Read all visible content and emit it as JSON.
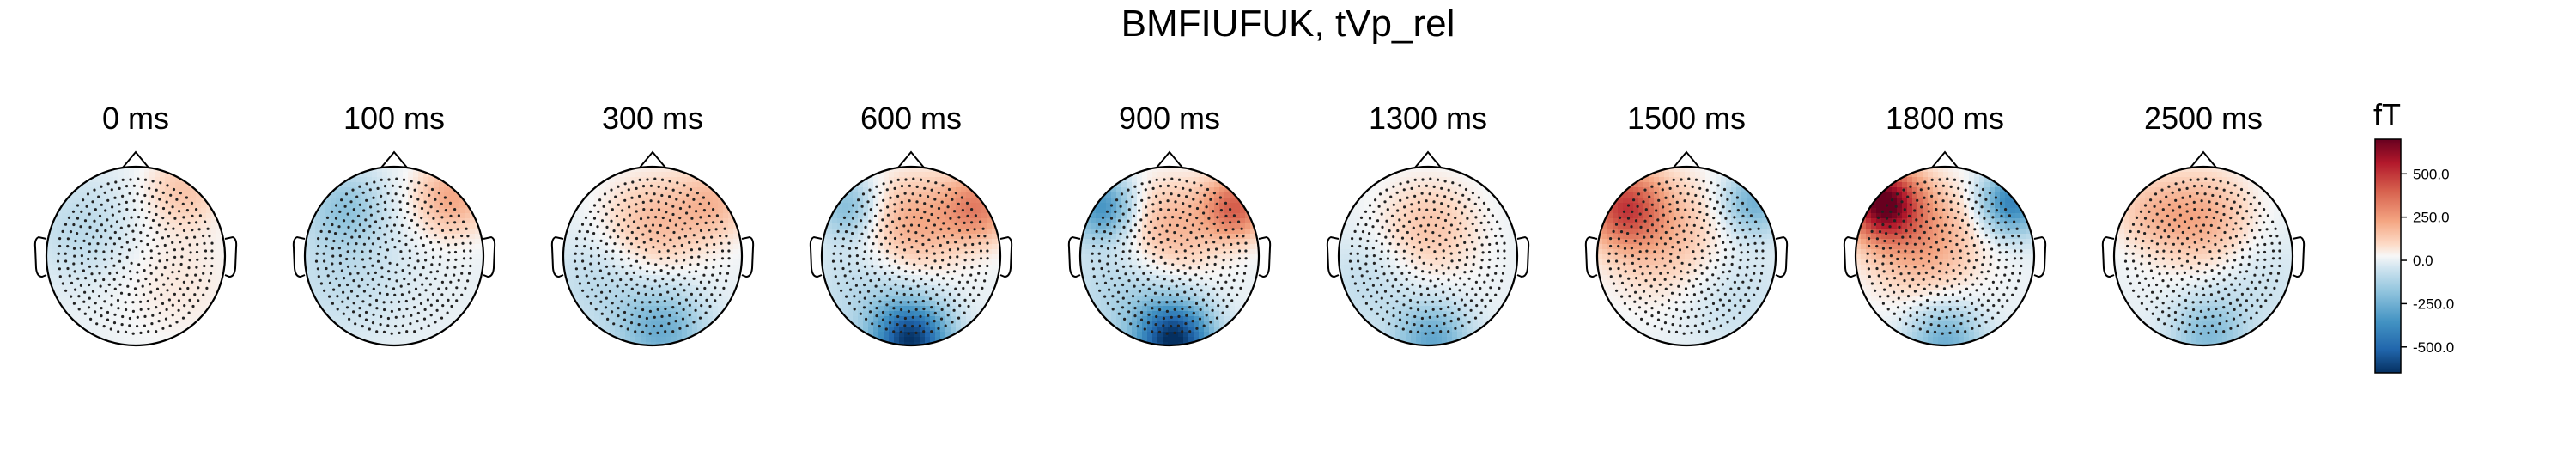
{
  "chart_data": {
    "type": "heatmap",
    "title": "BMFIUFUK, tVp_rel",
    "colorbar": {
      "unit": "fT",
      "ticks": [
        {
          "value": 500,
          "label": "500.0"
        },
        {
          "value": 250,
          "label": "250.0"
        },
        {
          "value": 0,
          "label": "0.0"
        },
        {
          "value": -250,
          "label": "-250.0"
        },
        {
          "value": -500,
          "label": "-500.0"
        }
      ],
      "range": [
        -650,
        700
      ],
      "colormap": "RdBu_r",
      "colors": {
        "high": "#67001f",
        "mid": "#f7f7f7",
        "low": "#053061"
      }
    },
    "topomaps": [
      {
        "label": "0 ms",
        "time_ms": 0,
        "blobs": [
          {
            "u": 0.55,
            "v": -0.75,
            "s": 0.3,
            "val": 140
          },
          {
            "u": -0.6,
            "v": -0.3,
            "s": 0.4,
            "val": -90
          },
          {
            "u": 0.5,
            "v": 0.3,
            "s": 0.5,
            "val": 60
          }
        ]
      },
      {
        "label": "100 ms",
        "time_ms": 100,
        "blobs": [
          {
            "u": 0.65,
            "v": -0.65,
            "s": 0.3,
            "val": 220
          },
          {
            "u": -0.55,
            "v": -0.55,
            "s": 0.3,
            "val": -160
          },
          {
            "u": -0.6,
            "v": 0.2,
            "s": 0.5,
            "val": -80
          }
        ]
      },
      {
        "label": "300 ms",
        "time_ms": 300,
        "blobs": [
          {
            "u": 0.0,
            "v": -0.35,
            "s": 0.4,
            "val": 170
          },
          {
            "u": 0.7,
            "v": -0.6,
            "s": 0.3,
            "val": 160
          },
          {
            "u": 0.1,
            "v": 0.85,
            "s": 0.35,
            "val": -260
          },
          {
            "u": -0.6,
            "v": 0.3,
            "s": 0.4,
            "val": -90
          }
        ]
      },
      {
        "label": "600 ms",
        "time_ms": 600,
        "blobs": [
          {
            "u": 0.0,
            "v": -0.35,
            "s": 0.4,
            "val": 220
          },
          {
            "u": 0.75,
            "v": -0.55,
            "s": 0.28,
            "val": 300
          },
          {
            "u": 0.0,
            "v": 0.95,
            "s": 0.3,
            "val": -620
          },
          {
            "u": -0.7,
            "v": -0.55,
            "s": 0.25,
            "val": -220
          },
          {
            "u": -0.5,
            "v": 0.4,
            "s": 0.45,
            "val": -100
          }
        ]
      },
      {
        "label": "900 ms",
        "time_ms": 900,
        "blobs": [
          {
            "u": 0.0,
            "v": -0.3,
            "s": 0.4,
            "val": 200
          },
          {
            "u": 0.75,
            "v": -0.55,
            "s": 0.25,
            "val": 380
          },
          {
            "u": 0.05,
            "v": 0.95,
            "s": 0.3,
            "val": -650
          },
          {
            "u": -0.75,
            "v": -0.55,
            "s": 0.25,
            "val": -360
          },
          {
            "u": -0.5,
            "v": 0.4,
            "s": 0.45,
            "val": -120
          }
        ]
      },
      {
        "label": "1300 ms",
        "time_ms": 1300,
        "blobs": [
          {
            "u": 0.0,
            "v": -0.3,
            "s": 0.4,
            "val": 150
          },
          {
            "u": 0.05,
            "v": 0.95,
            "s": 0.3,
            "val": -280
          },
          {
            "u": -0.65,
            "v": 0.3,
            "s": 0.4,
            "val": -80
          }
        ]
      },
      {
        "label": "1500 ms",
        "time_ms": 1500,
        "blobs": [
          {
            "u": -0.7,
            "v": -0.55,
            "s": 0.3,
            "val": 420
          },
          {
            "u": -0.2,
            "v": -0.2,
            "s": 0.5,
            "val": 170
          },
          {
            "u": 0.75,
            "v": -0.6,
            "s": 0.25,
            "val": -260
          },
          {
            "u": 0.45,
            "v": 0.4,
            "s": 0.45,
            "val": -80
          }
        ]
      },
      {
        "label": "1800 ms",
        "time_ms": 1800,
        "blobs": [
          {
            "u": -0.7,
            "v": -0.6,
            "s": 0.28,
            "val": 650
          },
          {
            "u": -0.25,
            "v": -0.2,
            "s": 0.45,
            "val": 240
          },
          {
            "u": 0.75,
            "v": -0.6,
            "s": 0.25,
            "val": -420
          },
          {
            "u": 0.0,
            "v": 0.95,
            "s": 0.3,
            "val": -260
          }
        ]
      },
      {
        "label": "2500 ms",
        "time_ms": 2500,
        "blobs": [
          {
            "u": 0.0,
            "v": -0.4,
            "s": 0.4,
            "val": 210
          },
          {
            "u": -0.6,
            "v": -0.5,
            "s": 0.3,
            "val": 120
          },
          {
            "u": 0.05,
            "v": 0.9,
            "s": 0.3,
            "val": -200
          },
          {
            "u": 0.55,
            "v": 0.3,
            "s": 0.45,
            "val": -60
          }
        ]
      }
    ]
  }
}
